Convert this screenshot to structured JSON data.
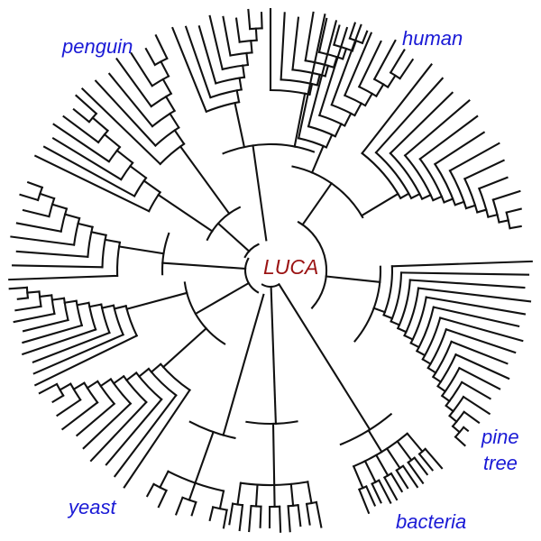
{
  "root": {
    "label": "LUCA",
    "color": "#9b1414"
  },
  "leaf_label_color": "#1a1ad6",
  "labels": {
    "penguin": "penguin",
    "human": "human",
    "pine": "pine",
    "tree": "tree",
    "yeast": "yeast",
    "bacteria": "bacteria"
  }
}
